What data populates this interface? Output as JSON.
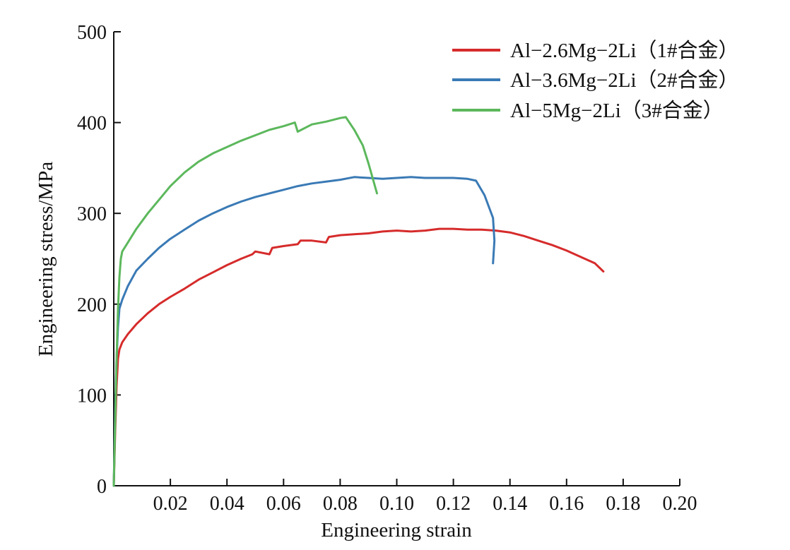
{
  "chart_data": {
    "type": "line",
    "title": "",
    "xlabel": "Engineering strain",
    "ylabel": "Engineering stress/MPa",
    "xlim": [
      0,
      0.2
    ],
    "ylim": [
      0,
      500
    ],
    "x_ticks": [
      0.02,
      0.04,
      0.06,
      0.08,
      0.1,
      0.12,
      0.14,
      0.16,
      0.18,
      0.2
    ],
    "x_tick_labels": [
      "0.02",
      "0.04",
      "0.06",
      "0.08",
      "0.10",
      "0.12",
      "0.14",
      "0.16",
      "0.18",
      "0.20"
    ],
    "y_ticks": [
      0,
      100,
      200,
      300,
      400,
      500
    ],
    "y_tick_labels": [
      "0",
      "100",
      "200",
      "300",
      "400",
      "500"
    ],
    "grid": false,
    "legend_position": "top-right",
    "series": [
      {
        "name": "Al−2.6Mg−2Li（1#合金）",
        "color": "#d62b2b",
        "x": [
          0,
          0.0005,
          0.001,
          0.0015,
          0.002,
          0.003,
          0.005,
          0.008,
          0.012,
          0.016,
          0.02,
          0.025,
          0.03,
          0.035,
          0.04,
          0.045,
          0.049,
          0.05,
          0.055,
          0.056,
          0.06,
          0.065,
          0.066,
          0.07,
          0.075,
          0.076,
          0.08,
          0.085,
          0.09,
          0.095,
          0.1,
          0.105,
          0.11,
          0.115,
          0.12,
          0.125,
          0.13,
          0.135,
          0.14,
          0.145,
          0.15,
          0.155,
          0.16,
          0.165,
          0.17,
          0.173
        ],
        "y": [
          0,
          60,
          110,
          140,
          150,
          158,
          167,
          178,
          190,
          200,
          208,
          217,
          227,
          235,
          243,
          250,
          255,
          258,
          255,
          262,
          264,
          266,
          270,
          270,
          268,
          274,
          276,
          277,
          278,
          280,
          281,
          280,
          281,
          283,
          283,
          282,
          282,
          281,
          279,
          275,
          270,
          265,
          259,
          252,
          245,
          236
        ]
      },
      {
        "name": "Al−3.6Mg−2Li（2#合金）",
        "color": "#3a7ab5",
        "x": [
          0,
          0.0005,
          0.001,
          0.0015,
          0.002,
          0.003,
          0.005,
          0.008,
          0.012,
          0.016,
          0.02,
          0.025,
          0.03,
          0.035,
          0.04,
          0.045,
          0.05,
          0.055,
          0.06,
          0.065,
          0.07,
          0.075,
          0.08,
          0.085,
          0.09,
          0.095,
          0.1,
          0.105,
          0.11,
          0.115,
          0.12,
          0.125,
          0.128,
          0.131,
          0.134,
          0.1345,
          0.134
        ],
        "y": [
          0,
          80,
          140,
          175,
          195,
          205,
          220,
          237,
          250,
          262,
          272,
          282,
          292,
          300,
          307,
          313,
          318,
          322,
          326,
          330,
          333,
          335,
          337,
          340,
          339,
          338,
          339,
          340,
          339,
          339,
          339,
          338,
          336,
          320,
          295,
          270,
          245
        ]
      },
      {
        "name": "Al−5Mg−2Li（3#合金）",
        "color": "#5cb85c",
        "x": [
          0,
          0.0005,
          0.001,
          0.0015,
          0.002,
          0.0025,
          0.003,
          0.005,
          0.008,
          0.012,
          0.016,
          0.02,
          0.025,
          0.03,
          0.035,
          0.04,
          0.045,
          0.05,
          0.055,
          0.06,
          0.064,
          0.065,
          0.07,
          0.075,
          0.08,
          0.082,
          0.085,
          0.088,
          0.09,
          0.093
        ],
        "y": [
          0,
          70,
          140,
          195,
          230,
          250,
          258,
          268,
          283,
          300,
          315,
          330,
          345,
          357,
          366,
          373,
          380,
          386,
          392,
          396,
          400,
          390,
          398,
          401,
          405,
          406,
          392,
          375,
          355,
          322
        ]
      }
    ]
  }
}
